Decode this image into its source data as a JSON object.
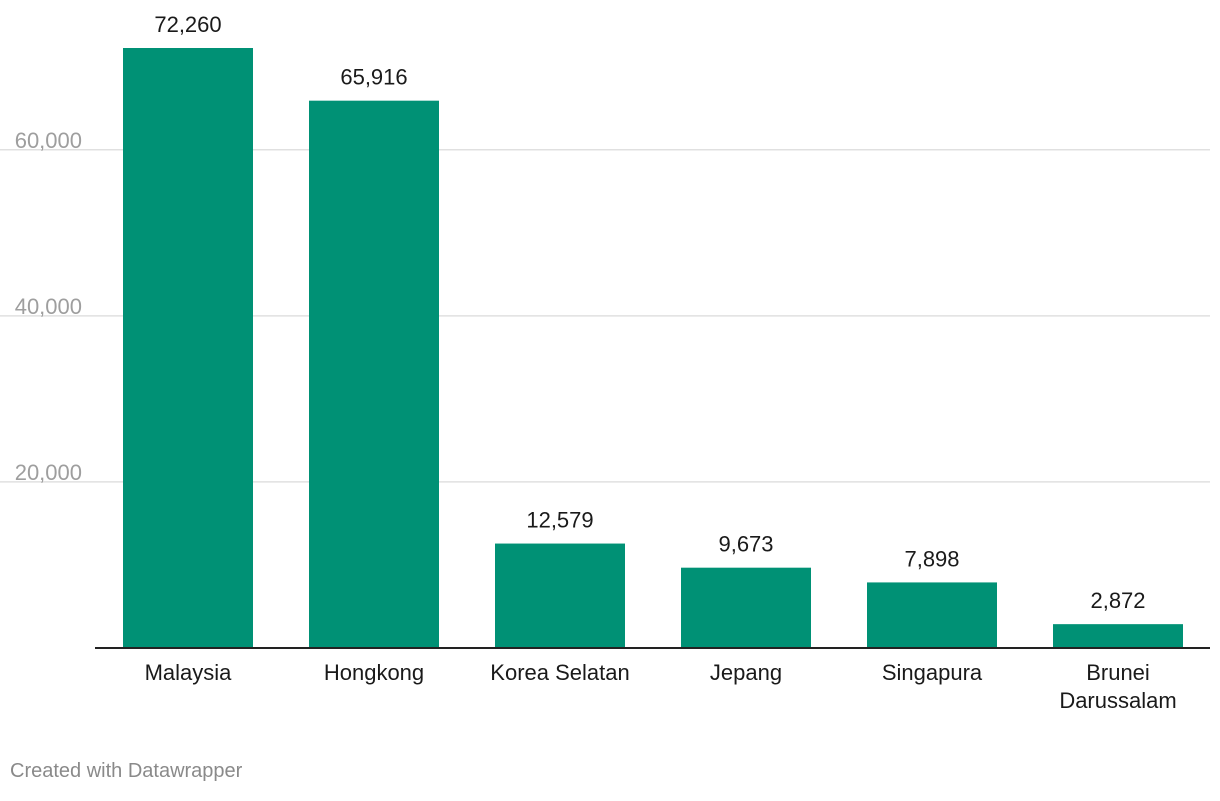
{
  "chart_data": {
    "type": "bar",
    "categories": [
      "Malaysia",
      "Hongkong",
      "Korea Selatan",
      "Jepang",
      "Singapura",
      "Brunei Darussalam"
    ],
    "category_lines": [
      [
        "Malaysia"
      ],
      [
        "Hongkong"
      ],
      [
        "Korea Selatan"
      ],
      [
        "Jepang"
      ],
      [
        "Singapura"
      ],
      [
        "Brunei",
        "Darussalam"
      ]
    ],
    "values": [
      72260,
      65916,
      12579,
      9673,
      7898,
      2872
    ],
    "value_labels": [
      "72,260",
      "65,916",
      "12,579",
      "9,673",
      "7,898",
      "2,872"
    ],
    "y_ticks": [
      20000,
      40000,
      60000
    ],
    "y_tick_labels": [
      "20,000",
      "40,000",
      "60,000"
    ],
    "ylim": [
      0,
      72260
    ],
    "grid": true,
    "title": "",
    "xlabel": "",
    "ylabel": "",
    "colors": {
      "bar": "#009175",
      "grid": "#e0e0e0",
      "axis": "#222222",
      "tick_label": "#9e9e9e",
      "value_label": "#1a1a1a",
      "category_label": "#1a1a1a"
    }
  },
  "footer": {
    "credit": "Created with Datawrapper"
  }
}
